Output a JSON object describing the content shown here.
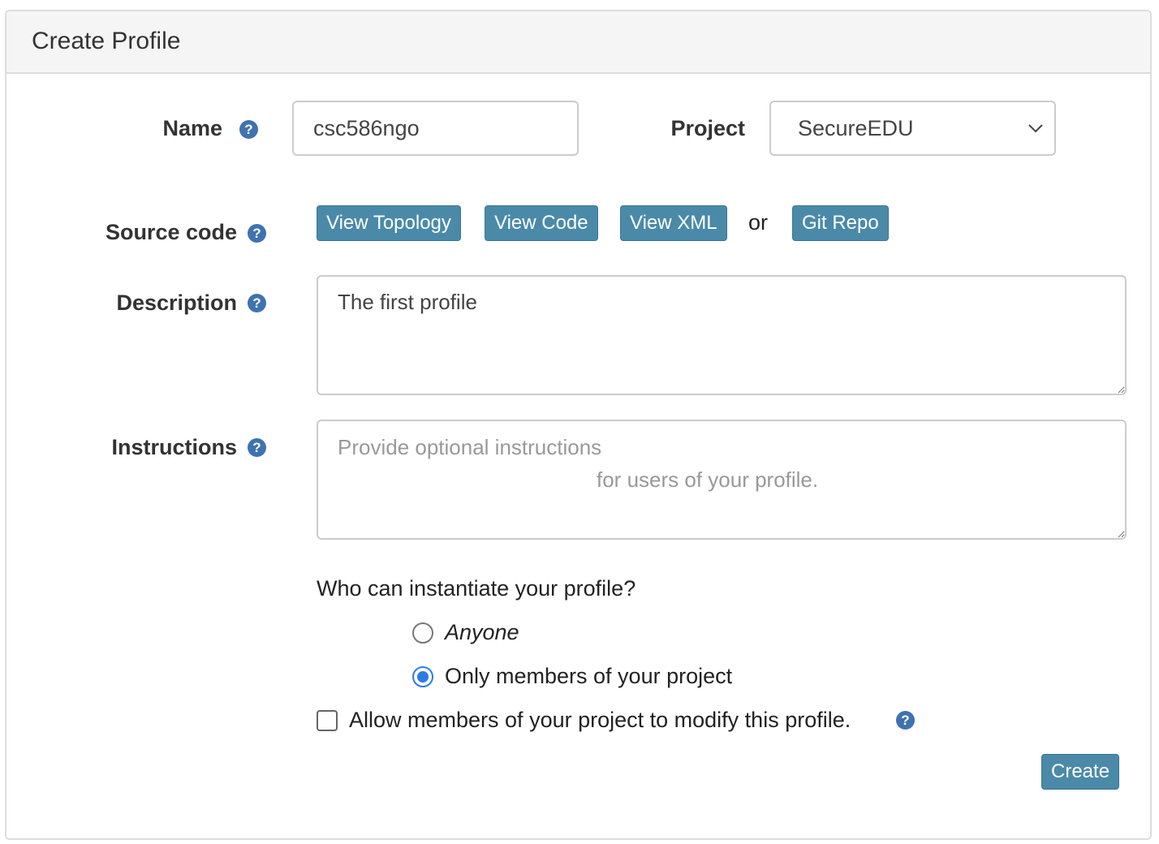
{
  "panel": {
    "title": "Create Profile"
  },
  "form": {
    "name": {
      "label": "Name",
      "value": "csc586ngo",
      "help_icon": "question-circle-icon"
    },
    "project": {
      "label": "Project",
      "selected": "SecureEDU"
    },
    "source_code": {
      "label": "Source code",
      "buttons": [
        "View Topology",
        "View Code",
        "View XML"
      ],
      "or": "or",
      "git_repo": "Git Repo"
    },
    "description": {
      "label": "Description",
      "value": "The first profile"
    },
    "instructions": {
      "label": "Instructions",
      "placeholder_lines": [
        "Provide optional instructions",
        "for users of your profile."
      ]
    },
    "who": {
      "question": "Who can instantiate your profile?",
      "options": [
        "Anyone",
        "Only members of your project"
      ],
      "selected": "Only members of your project"
    },
    "allow_modify": {
      "label": "Allow members of your project to modify this profile.",
      "checked": false
    },
    "submit": "Create"
  },
  "colors": {
    "button": "#4a8aa8",
    "help": "#3f72b0",
    "radio_selected": "#2c7be5"
  }
}
